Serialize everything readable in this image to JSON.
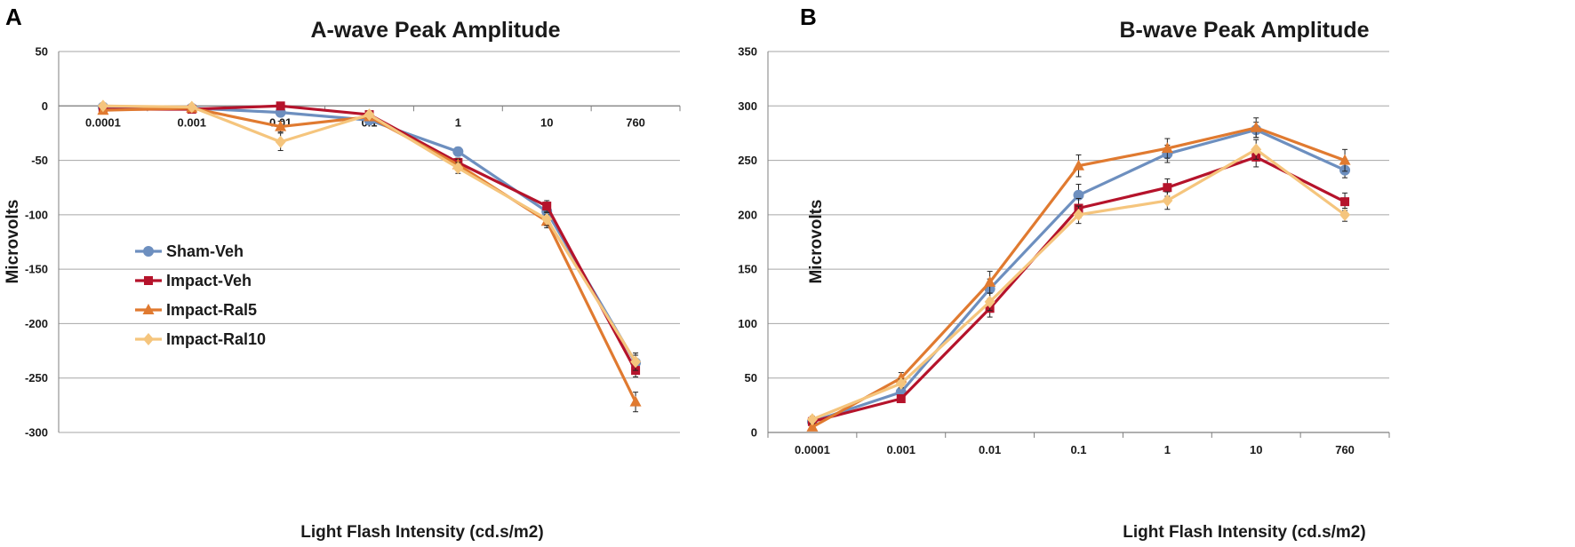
{
  "figure": {
    "panels": [
      "A",
      "B"
    ]
  },
  "chart_data": [
    {
      "type": "line",
      "panel": "A",
      "title": "A-wave Peak Amplitude",
      "xlabel": "Light Flash Intensity (cd.s/m2)",
      "ylabel": "Microvolts",
      "categories": [
        "0.0001",
        "0.001",
        "0.01",
        "0.1",
        "1",
        "10",
        "760"
      ],
      "ylim": [
        -300,
        50
      ],
      "yticks": [
        50,
        0,
        -50,
        -100,
        -150,
        -200,
        -250,
        -300
      ],
      "grid": true,
      "legend": "lower-left",
      "series": [
        {
          "name": "Sham-Veh",
          "color": "#6d8fbf",
          "marker": "circle",
          "values": [
            -1,
            -2,
            -6,
            -13,
            -42,
            -97,
            -236
          ],
          "errors": [
            2,
            2,
            3,
            3,
            4,
            6,
            7
          ]
        },
        {
          "name": "Impact-Veh",
          "color": "#b5132b",
          "marker": "square",
          "values": [
            -3,
            -3,
            0,
            -8,
            -52,
            -92,
            -243
          ],
          "errors": [
            2,
            2,
            2,
            2,
            4,
            5,
            6
          ]
        },
        {
          "name": "Impact-Ral5",
          "color": "#e07a30",
          "marker": "triangle",
          "values": [
            -4,
            -2,
            -19,
            -10,
            -54,
            -106,
            -272
          ],
          "errors": [
            2,
            2,
            5,
            3,
            5,
            6,
            9
          ]
        },
        {
          "name": "Impact-Ral10",
          "color": "#f5c57d",
          "marker": "diamond",
          "values": [
            0,
            -1,
            -33,
            -8,
            -57,
            -104,
            -235
          ],
          "errors": [
            2,
            2,
            8,
            3,
            5,
            6,
            8
          ]
        }
      ]
    },
    {
      "type": "line",
      "panel": "B",
      "title": "B-wave Peak Amplitude",
      "xlabel": "Light Flash Intensity (cd.s/m2)",
      "ylabel": "Microvolts",
      "categories": [
        "0.0001",
        "0.001",
        "0.01",
        "0.1",
        "1",
        "10",
        "760"
      ],
      "ylim": [
        0,
        350
      ],
      "yticks": [
        350,
        300,
        250,
        200,
        150,
        100,
        50,
        0
      ],
      "grid": true,
      "series": [
        {
          "name": "Sham-Veh",
          "color": "#6d8fbf",
          "marker": "circle",
          "values": [
            10,
            37,
            132,
            218,
            256,
            278,
            241
          ],
          "errors": [
            3,
            4,
            9,
            10,
            8,
            7,
            7
          ]
        },
        {
          "name": "Impact-Veh",
          "color": "#b5132b",
          "marker": "square",
          "values": [
            10,
            31,
            114,
            206,
            225,
            253,
            212
          ],
          "errors": [
            3,
            3,
            8,
            9,
            8,
            9,
            8
          ]
        },
        {
          "name": "Impact-Ral5",
          "color": "#e07a30",
          "marker": "triangle",
          "values": [
            5,
            50,
            138,
            245,
            261,
            280,
            250
          ],
          "errors": [
            3,
            5,
            10,
            10,
            9,
            9,
            10
          ]
        },
        {
          "name": "Impact-Ral10",
          "color": "#f5c57d",
          "marker": "diamond",
          "values": [
            12,
            45,
            120,
            200,
            213,
            260,
            200
          ],
          "errors": [
            3,
            4,
            8,
            8,
            8,
            9,
            6
          ]
        }
      ]
    }
  ]
}
